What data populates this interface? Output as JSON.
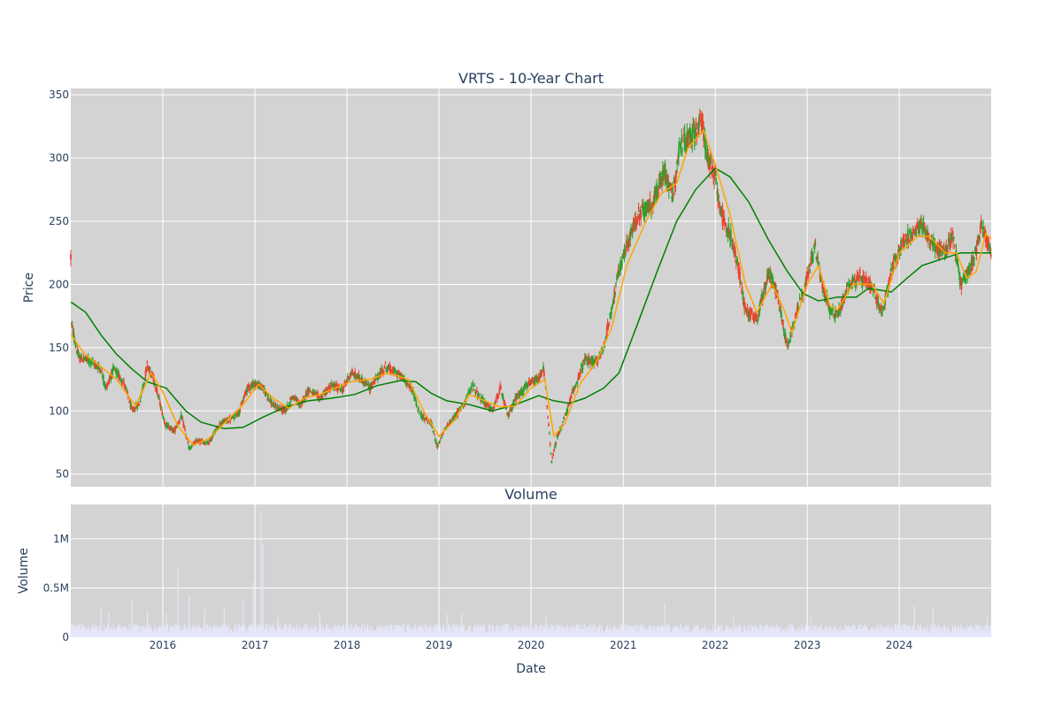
{
  "chart_data": [
    {
      "type": "candlestick",
      "title": "VRTS - 10-Year Chart",
      "ylabel": "Price",
      "ylim": [
        40,
        355
      ],
      "yticks": [
        50,
        100,
        150,
        200,
        250,
        300,
        350
      ],
      "xlim": [
        "2015-01-01",
        "2024-12-31"
      ],
      "xticks": [
        "2016",
        "2017",
        "2018",
        "2019",
        "2020",
        "2021",
        "2022",
        "2023",
        "2024"
      ],
      "grid": true,
      "up_color": "#2ca02c",
      "down_color": "#e8432f",
      "series": [
        {
          "kind": "close-path (approximate)",
          "points": [
            [
              "2015-01-02",
              170
            ],
            [
              "2015-02-01",
              142
            ],
            [
              "2015-03-15",
              140
            ],
            [
              "2015-05-01",
              133
            ],
            [
              "2015-05-20",
              118
            ],
            [
              "2015-06-20",
              133
            ],
            [
              "2015-08-01",
              122
            ],
            [
              "2015-09-01",
              100
            ],
            [
              "2015-10-01",
              106
            ],
            [
              "2015-11-01",
              137
            ],
            [
              "2015-12-01",
              122
            ],
            [
              "2016-01-10",
              90
            ],
            [
              "2016-02-15",
              84
            ],
            [
              "2016-03-15",
              96
            ],
            [
              "2016-04-15",
              70
            ],
            [
              "2016-05-15",
              76
            ],
            [
              "2016-07-01",
              75
            ],
            [
              "2016-08-15",
              90
            ],
            [
              "2016-10-01",
              94
            ],
            [
              "2016-11-01",
              100
            ],
            [
              "2016-12-01",
              118
            ],
            [
              "2017-01-01",
              122
            ],
            [
              "2017-02-01",
              118
            ],
            [
              "2017-03-15",
              104
            ],
            [
              "2017-05-01",
              100
            ],
            [
              "2017-06-01",
              112
            ],
            [
              "2017-07-01",
              104
            ],
            [
              "2017-08-01",
              117
            ],
            [
              "2017-09-15",
              110
            ],
            [
              "2017-11-01",
              120
            ],
            [
              "2017-12-15",
              117
            ],
            [
              "2018-01-15",
              130
            ],
            [
              "2018-03-01",
              125
            ],
            [
              "2018-04-01",
              118
            ],
            [
              "2018-06-01",
              135
            ],
            [
              "2018-08-01",
              128
            ],
            [
              "2018-09-15",
              118
            ],
            [
              "2018-10-15",
              98
            ],
            [
              "2018-12-01",
              90
            ],
            [
              "2018-12-25",
              72
            ],
            [
              "2019-02-01",
              88
            ],
            [
              "2019-03-15",
              98
            ],
            [
              "2019-04-15",
              108
            ],
            [
              "2019-05-15",
              120
            ],
            [
              "2019-06-15",
              110
            ],
            [
              "2019-08-01",
              100
            ],
            [
              "2019-09-01",
              118
            ],
            [
              "2019-10-01",
              96
            ],
            [
              "2019-11-01",
              110
            ],
            [
              "2019-12-15",
              120
            ],
            [
              "2020-02-01",
              125
            ],
            [
              "2020-02-20",
              135
            ],
            [
              "2020-03-23",
              60
            ],
            [
              "2020-04-15",
              80
            ],
            [
              "2020-05-15",
              95
            ],
            [
              "2020-06-15",
              115
            ],
            [
              "2020-08-01",
              140
            ],
            [
              "2020-09-15",
              138
            ],
            [
              "2020-10-15",
              150
            ],
            [
              "2020-11-15",
              180
            ],
            [
              "2020-12-15",
              210
            ],
            [
              "2021-01-15",
              230
            ],
            [
              "2021-03-01",
              255
            ],
            [
              "2021-05-01",
              265
            ],
            [
              "2021-06-15",
              290
            ],
            [
              "2021-07-15",
              270
            ],
            [
              "2021-08-15",
              310
            ],
            [
              "2021-10-01",
              318
            ],
            [
              "2021-11-10",
              330
            ],
            [
              "2021-12-01",
              300
            ],
            [
              "2022-01-01",
              285
            ],
            [
              "2022-02-01",
              250
            ],
            [
              "2022-03-01",
              240
            ],
            [
              "2022-04-01",
              215
            ],
            [
              "2022-05-01",
              180
            ],
            [
              "2022-06-15",
              172
            ],
            [
              "2022-08-01",
              210
            ],
            [
              "2022-09-01",
              195
            ],
            [
              "2022-10-15",
              150
            ],
            [
              "2022-11-15",
              175
            ],
            [
              "2023-01-01",
              205
            ],
            [
              "2023-02-01",
              230
            ],
            [
              "2023-03-01",
              200
            ],
            [
              "2023-04-01",
              180
            ],
            [
              "2023-05-01",
              175
            ],
            [
              "2023-06-15",
              200
            ],
            [
              "2023-08-01",
              205
            ],
            [
              "2023-09-15",
              198
            ],
            [
              "2023-10-25",
              178
            ],
            [
              "2023-12-01",
              210
            ],
            [
              "2024-01-15",
              235
            ],
            [
              "2024-03-01",
              240
            ],
            [
              "2024-04-01",
              248
            ],
            [
              "2024-05-15",
              230
            ],
            [
              "2024-07-01",
              225
            ],
            [
              "2024-08-01",
              240
            ],
            [
              "2024-09-01",
              200
            ],
            [
              "2024-10-15",
              215
            ],
            [
              "2024-11-25",
              248
            ],
            [
              "2024-12-31",
              222
            ]
          ]
        },
        {
          "name": "",
          "kind": "moving average (orange)",
          "color": "#ffa500",
          "points": [
            [
              "2015-01-02",
              160
            ],
            [
              "2015-03-01",
              144
            ],
            [
              "2015-05-01",
              135
            ],
            [
              "2015-07-01",
              125
            ],
            [
              "2015-09-15",
              104
            ],
            [
              "2015-11-15",
              130
            ],
            [
              "2016-01-01",
              115
            ],
            [
              "2016-03-01",
              88
            ],
            [
              "2016-05-01",
              73
            ],
            [
              "2016-07-01",
              78
            ],
            [
              "2016-09-01",
              90
            ],
            [
              "2016-11-15",
              105
            ],
            [
              "2017-01-15",
              121
            ],
            [
              "2017-03-15",
              110
            ],
            [
              "2017-05-15",
              102
            ],
            [
              "2017-07-15",
              110
            ],
            [
              "2017-09-15",
              113
            ],
            [
              "2017-11-15",
              118
            ],
            [
              "2018-01-15",
              123
            ],
            [
              "2018-04-01",
              125
            ],
            [
              "2018-06-15",
              130
            ],
            [
              "2018-09-01",
              125
            ],
            [
              "2018-11-01",
              100
            ],
            [
              "2019-01-01",
              80
            ],
            [
              "2019-03-01",
              92
            ],
            [
              "2019-05-01",
              113
            ],
            [
              "2019-07-01",
              108
            ],
            [
              "2019-09-01",
              103
            ],
            [
              "2019-11-01",
              104
            ],
            [
              "2020-01-01",
              118
            ],
            [
              "2020-02-25",
              125
            ],
            [
              "2020-04-01",
              80
            ],
            [
              "2020-05-15",
              90
            ],
            [
              "2020-07-15",
              122
            ],
            [
              "2020-09-15",
              138
            ],
            [
              "2020-11-15",
              165
            ],
            [
              "2021-01-15",
              215
            ],
            [
              "2021-04-01",
              250
            ],
            [
              "2021-06-01",
              272
            ],
            [
              "2021-08-01",
              280
            ],
            [
              "2021-09-15",
              308
            ],
            [
              "2021-11-15",
              322
            ],
            [
              "2022-01-01",
              295
            ],
            [
              "2022-03-01",
              255
            ],
            [
              "2022-05-01",
              200
            ],
            [
              "2022-06-15",
              178
            ],
            [
              "2022-08-15",
              200
            ],
            [
              "2022-10-01",
              180
            ],
            [
              "2022-11-01",
              162
            ],
            [
              "2023-01-01",
              200
            ],
            [
              "2023-02-15",
              215
            ],
            [
              "2023-04-01",
              183
            ],
            [
              "2023-05-01",
              180
            ],
            [
              "2023-07-01",
              200
            ],
            [
              "2023-09-15",
              200
            ],
            [
              "2023-11-01",
              185
            ],
            [
              "2024-01-01",
              225
            ],
            [
              "2024-03-15",
              238
            ],
            [
              "2024-05-01",
              238
            ],
            [
              "2024-07-01",
              225
            ],
            [
              "2024-08-15",
              225
            ],
            [
              "2024-09-25",
              205
            ],
            [
              "2024-11-01",
              210
            ],
            [
              "2024-12-10",
              240
            ],
            [
              "2024-12-31",
              236
            ]
          ]
        },
        {
          "name": "",
          "kind": "moving average (green)",
          "color": "#008000",
          "points": [
            [
              "2015-01-02",
              186
            ],
            [
              "2015-03-01",
              178
            ],
            [
              "2015-05-01",
              160
            ],
            [
              "2015-07-01",
              145
            ],
            [
              "2015-09-01",
              133
            ],
            [
              "2015-11-01",
              123
            ],
            [
              "2016-01-15",
              118
            ],
            [
              "2016-04-01",
              100
            ],
            [
              "2016-06-01",
              91
            ],
            [
              "2016-09-01",
              86
            ],
            [
              "2016-11-15",
              87
            ],
            [
              "2017-02-01",
              95
            ],
            [
              "2017-05-01",
              103
            ],
            [
              "2017-08-01",
              108
            ],
            [
              "2017-11-01",
              110
            ],
            [
              "2018-02-01",
              113
            ],
            [
              "2018-05-01",
              120
            ],
            [
              "2018-08-01",
              124
            ],
            [
              "2018-10-01",
              123
            ],
            [
              "2018-12-01",
              114
            ],
            [
              "2019-02-01",
              108
            ],
            [
              "2019-05-01",
              105
            ],
            [
              "2019-08-01",
              100
            ],
            [
              "2019-11-01",
              105
            ],
            [
              "2020-02-01",
              112
            ],
            [
              "2020-04-01",
              108
            ],
            [
              "2020-06-01",
              106
            ],
            [
              "2020-08-01",
              110
            ],
            [
              "2020-10-15",
              118
            ],
            [
              "2020-12-15",
              130
            ],
            [
              "2021-03-01",
              170
            ],
            [
              "2021-05-15",
              210
            ],
            [
              "2021-08-01",
              250
            ],
            [
              "2021-10-15",
              275
            ],
            [
              "2022-01-01",
              292
            ],
            [
              "2022-03-01",
              285
            ],
            [
              "2022-05-15",
              265
            ],
            [
              "2022-08-01",
              235
            ],
            [
              "2022-10-15",
              210
            ],
            [
              "2022-12-15",
              193
            ],
            [
              "2023-02-15",
              187
            ],
            [
              "2023-05-01",
              190
            ],
            [
              "2023-07-15",
              190
            ],
            [
              "2023-09-01",
              197
            ],
            [
              "2023-12-01",
              194
            ],
            [
              "2024-02-01",
              205
            ],
            [
              "2024-04-01",
              215
            ],
            [
              "2024-06-15",
              220
            ],
            [
              "2024-09-01",
              225
            ],
            [
              "2024-11-01",
              225
            ],
            [
              "2024-12-31",
              225
            ]
          ]
        }
      ]
    },
    {
      "type": "bar",
      "title": "Volume",
      "xlabel": "Date",
      "ylabel": "Volume",
      "ylim": [
        0,
        1350000
      ],
      "ytick_values": [
        0,
        500000,
        1000000
      ],
      "ytick_labels": [
        "0",
        "0.5M",
        "1M"
      ],
      "grid": true,
      "bar_color": "#e6e6fa",
      "typical_volume": 80000,
      "spikes": [
        [
          "2015-05-01",
          300000
        ],
        [
          "2015-06-01",
          250000
        ],
        [
          "2015-09-01",
          380000
        ],
        [
          "2015-11-01",
          260000
        ],
        [
          "2016-01-15",
          240000
        ],
        [
          "2016-03-01",
          700000
        ],
        [
          "2016-04-15",
          430000
        ],
        [
          "2016-06-15",
          290000
        ],
        [
          "2016-09-01",
          310000
        ],
        [
          "2016-11-15",
          370000
        ],
        [
          "2016-12-25",
          560000
        ],
        [
          "2017-01-25",
          1280000
        ],
        [
          "2017-02-01",
          950000
        ],
        [
          "2017-04-01",
          200000
        ],
        [
          "2017-09-15",
          250000
        ],
        [
          "2019-02-01",
          230000
        ],
        [
          "2019-04-01",
          240000
        ],
        [
          "2020-03-01",
          230000
        ],
        [
          "2021-06-15",
          350000
        ],
        [
          "2022-03-15",
          200000
        ],
        [
          "2023-01-15",
          220000
        ],
        [
          "2024-03-01",
          320000
        ],
        [
          "2024-05-15",
          300000
        ],
        [
          "2024-12-15",
          200000
        ]
      ]
    }
  ]
}
